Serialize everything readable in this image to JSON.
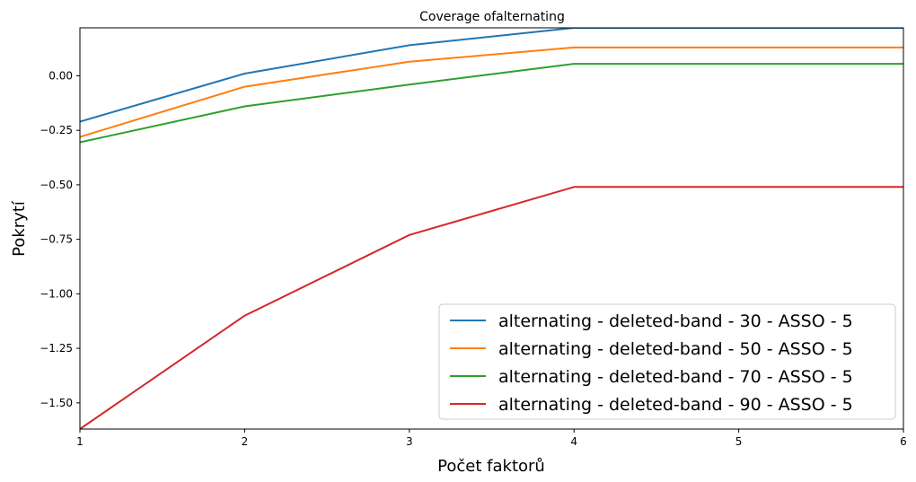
{
  "chart_data": {
    "type": "line",
    "title": "Coverage ofalternating",
    "xlabel": "Počet faktorů",
    "ylabel": "Pokrytí",
    "x": [
      1,
      2,
      3,
      4,
      5,
      6
    ],
    "xlim": [
      1,
      6
    ],
    "ylim": [
      -1.62,
      0.22
    ],
    "xticks": [
      "1",
      "2",
      "3",
      "4",
      "5",
      "6"
    ],
    "yticks": [
      0.0,
      -0.25,
      -0.5,
      -0.75,
      -1.0,
      -1.25,
      -1.5
    ],
    "ytick_labels": [
      "0.00",
      "−0.25",
      "−0.50",
      "−0.75",
      "−1.00",
      "−1.25",
      "−1.50"
    ],
    "grid": false,
    "legend_position": "bottom-right",
    "series": [
      {
        "name": "alternating - deleted-band - 30 - ASSO - 5",
        "color": "#1f77b4",
        "values": [
          -0.21,
          0.01,
          0.14,
          0.22,
          0.22,
          0.22
        ]
      },
      {
        "name": "alternating - deleted-band - 50 - ASSO - 5",
        "color": "#ff7f0e",
        "values": [
          -0.28,
          -0.05,
          0.065,
          0.13,
          0.13,
          0.13
        ]
      },
      {
        "name": "alternating - deleted-band - 70 - ASSO - 5",
        "color": "#2ca02c",
        "values": [
          -0.305,
          -0.14,
          -0.04,
          0.055,
          0.055,
          0.055
        ]
      },
      {
        "name": "alternating - deleted-band - 90 - ASSO - 5",
        "color": "#d62728",
        "values": [
          -1.62,
          -1.1,
          -0.73,
          -0.51,
          -0.51,
          -0.51
        ]
      }
    ]
  }
}
